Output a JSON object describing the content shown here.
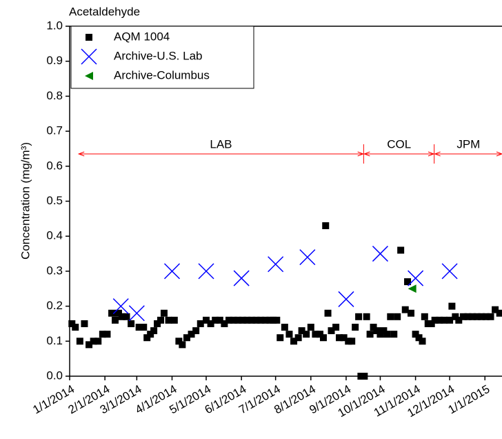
{
  "chart_data": {
    "type": "scatter",
    "title": "Acetaldehyde",
    "y_label": "Concentration (mg/m³)",
    "xlim": [
      "2014-01-01",
      "2015-01-16"
    ],
    "xticks": [
      {
        "value": "2014-01-01",
        "label": "1/1/2014"
      },
      {
        "value": "2014-02-01",
        "label": "2/1/2014"
      },
      {
        "value": "2014-03-01",
        "label": "3/1/2014"
      },
      {
        "value": "2014-04-01",
        "label": "4/1/2014"
      },
      {
        "value": "2014-05-01",
        "label": "5/1/2014"
      },
      {
        "value": "2014-06-01",
        "label": "6/1/2014"
      },
      {
        "value": "2014-07-01",
        "label": "7/1/2014"
      },
      {
        "value": "2014-08-01",
        "label": "8/1/2014"
      },
      {
        "value": "2014-09-01",
        "label": "9/1/2014"
      },
      {
        "value": "2014-10-01",
        "label": "10/1/2014"
      },
      {
        "value": "2014-11-01",
        "label": "11/1/2014"
      },
      {
        "value": "2014-12-01",
        "label": "12/1/2014"
      },
      {
        "value": "2015-01-01",
        "label": "1/1/2015"
      }
    ],
    "ylim": [
      0,
      1
    ],
    "yticks": [
      {
        "value": 0,
        "label": "0.0"
      },
      0.1,
      0.2,
      0.3,
      0.4,
      0.5,
      0.6,
      0.7,
      0.8,
      0.9,
      {
        "value": 1,
        "label": "1.0"
      }
    ],
    "legend": "upper left",
    "periods": [
      {
        "label": "LAB",
        "start": "2014-01-09",
        "end": "2014-09-16"
      },
      {
        "label": "COL",
        "start": "2014-09-17",
        "end": "2014-11-17"
      },
      {
        "label": "JPM",
        "start": "2014-11-18",
        "end": "2015-01-16"
      }
    ],
    "series": [
      {
        "name": "AQM 1004",
        "color": "#000000",
        "marker": "square",
        "x": [
          "2014-01-03",
          "2014-01-06",
          "2014-01-10",
          "2014-01-14",
          "2014-01-18",
          "2014-01-22",
          "2014-01-26",
          "2014-01-30",
          "2014-02-03",
          "2014-02-07",
          "2014-02-10",
          "2014-02-13",
          "2014-02-16",
          "2014-02-20",
          "2014-02-24",
          "2014-03-03",
          "2014-03-07",
          "2014-03-10",
          "2014-03-13",
          "2014-03-16",
          "2014-03-19",
          "2014-03-22",
          "2014-03-25",
          "2014-03-29",
          "2014-04-03",
          "2014-04-07",
          "2014-04-10",
          "2014-04-14",
          "2014-04-18",
          "2014-04-22",
          "2014-04-26",
          "2014-05-01",
          "2014-05-05",
          "2014-05-09",
          "2014-05-13",
          "2014-05-17",
          "2014-05-21",
          "2014-05-25",
          "2014-05-29",
          "2014-06-02",
          "2014-06-06",
          "2014-06-10",
          "2014-06-14",
          "2014-06-18",
          "2014-06-22",
          "2014-06-26",
          "2014-06-29",
          "2014-07-02",
          "2014-07-05",
          "2014-07-09",
          "2014-07-13",
          "2014-07-17",
          "2014-07-21",
          "2014-07-24",
          "2014-07-28",
          "2014-08-01",
          "2014-08-05",
          "2014-08-09",
          "2014-08-12",
          "2014-08-14",
          "2014-08-16",
          "2014-08-19",
          "2014-08-23",
          "2014-08-26",
          "2014-08-30",
          "2014-09-03",
          "2014-09-06",
          "2014-09-09",
          "2014-09-12",
          "2014-09-14",
          "2014-09-17",
          "2014-09-19",
          "2014-09-22",
          "2014-09-25",
          "2014-09-28",
          "2014-10-01",
          "2014-10-04",
          "2014-10-07",
          "2014-10-10",
          "2014-10-13",
          "2014-10-16",
          "2014-10-19",
          "2014-10-23",
          "2014-10-25",
          "2014-10-28",
          "2014-11-01",
          "2014-11-04",
          "2014-11-07",
          "2014-11-09",
          "2014-11-12",
          "2014-11-15",
          "2014-11-18",
          "2014-11-22",
          "2014-11-26",
          "2014-12-01",
          "2014-12-03",
          "2014-12-06",
          "2014-12-09",
          "2014-12-13",
          "2014-12-17",
          "2014-12-21",
          "2014-12-25",
          "2014-12-29",
          "2015-01-02",
          "2015-01-06",
          "2015-01-10",
          "2015-01-14"
        ],
        "values": [
          0.15,
          0.14,
          0.1,
          0.15,
          0.09,
          0.1,
          0.1,
          0.12,
          0.12,
          0.18,
          0.16,
          0.18,
          0.17,
          0.17,
          0.15,
          0.14,
          0.14,
          0.11,
          0.12,
          0.13,
          0.15,
          0.16,
          0.18,
          0.16,
          0.16,
          0.1,
          0.09,
          0.11,
          0.12,
          0.13,
          0.15,
          0.16,
          0.15,
          0.16,
          0.16,
          0.15,
          0.16,
          0.16,
          0.16,
          0.16,
          0.16,
          0.16,
          0.16,
          0.16,
          0.16,
          0.16,
          0.16,
          0.16,
          0.11,
          0.14,
          0.12,
          0.1,
          0.11,
          0.13,
          0.12,
          0.14,
          0.12,
          0.12,
          0.11,
          0.43,
          0.18,
          0.13,
          0.14,
          0.11,
          0.11,
          0.1,
          0.1,
          0.14,
          0.17,
          0.0,
          0.0,
          0.17,
          0.12,
          0.14,
          0.13,
          0.12,
          0.13,
          0.12,
          0.17,
          0.12,
          0.17,
          0.36,
          0.19,
          0.27,
          0.18,
          0.12,
          0.11,
          0.1,
          0.17,
          0.15,
          0.15,
          0.16,
          0.16,
          0.16,
          0.16,
          0.2,
          0.17,
          0.16,
          0.17,
          0.17,
          0.17,
          0.17,
          0.17,
          0.17,
          0.17,
          0.19,
          0.18
        ]
      },
      {
        "name": "Archive-U.S. Lab",
        "color": "#0000ff",
        "marker": "x",
        "x": [
          "2014-02-15",
          "2014-03-01",
          "2014-04-01",
          "2014-05-01",
          "2014-06-01",
          "2014-07-01",
          "2014-07-29",
          "2014-09-01",
          "2014-10-01",
          "2014-11-01",
          "2014-12-01"
        ],
        "values": [
          0.2,
          0.18,
          0.3,
          0.3,
          0.28,
          0.32,
          0.34,
          0.22,
          0.35,
          0.28,
          0.3
        ]
      },
      {
        "name": "Archive-Columbus",
        "color": "#008000",
        "marker": "triangle-left",
        "x": [
          "2014-10-29"
        ],
        "values": [
          0.25
        ]
      }
    ]
  }
}
